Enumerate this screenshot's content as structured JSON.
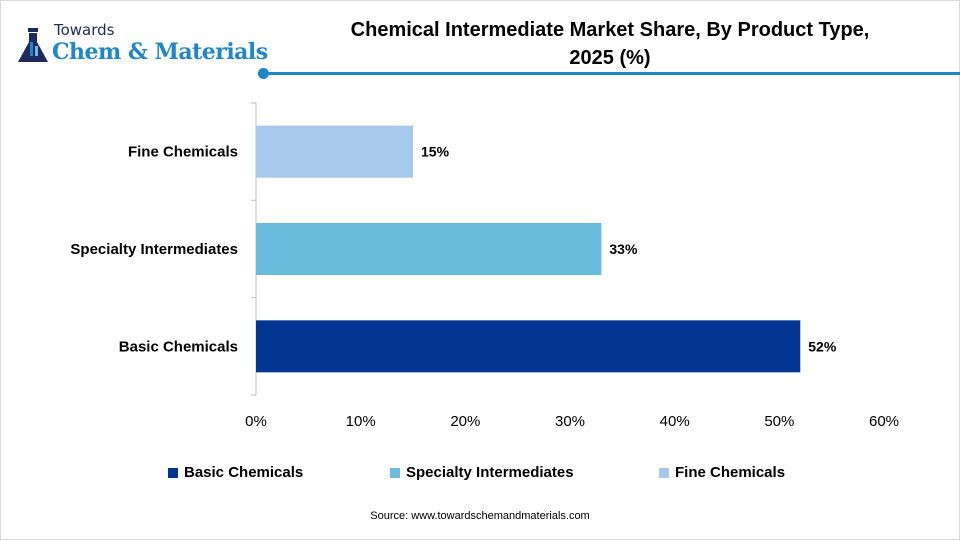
{
  "logo": {
    "line1": "Towards",
    "line2": "Chem & Materials"
  },
  "chart_data": {
    "type": "bar",
    "orientation": "horizontal",
    "title": "Chemical Intermediate Market Share, By Product Type, 2025 (%)",
    "title_lines": [
      "Chemical Intermediate Market Share, By Product Type,",
      "2025 (%)"
    ],
    "categories": [
      "Basic Chemicals",
      "Specialty Intermediates",
      "Fine Chemicals"
    ],
    "values": [
      52,
      33,
      15
    ],
    "data_labels": [
      "52%",
      "33%",
      "15%"
    ],
    "colors": [
      "#003591",
      "#6bbcdc",
      "#a6c8ea"
    ],
    "xlim": [
      0,
      60
    ],
    "xticks": [
      "0%",
      "10%",
      "20%",
      "30%",
      "40%",
      "50%",
      "60%"
    ],
    "grid": false,
    "legend_position": "bottom",
    "legend": [
      "Basic Chemicals",
      "Specialty Intermediates",
      "Fine Chemicals"
    ]
  },
  "source": "Source: www.towardschemandmaterials.com"
}
